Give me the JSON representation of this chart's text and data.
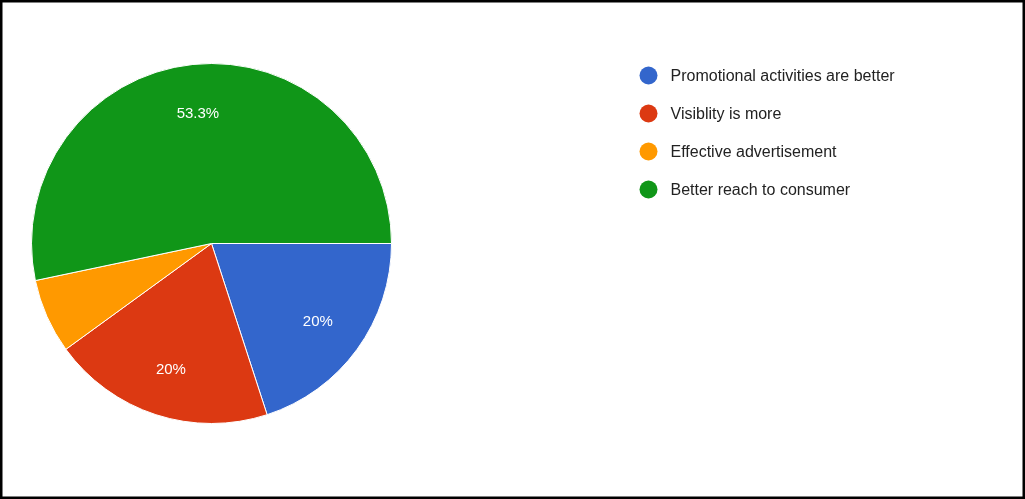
{
  "chart_data": {
    "type": "pie",
    "categories": [
      "Promotional activities are better",
      "Visiblity is more",
      "Effective advertisement",
      "Better reach to consumer"
    ],
    "values": [
      20,
      20,
      6.7,
      53.3
    ],
    "colors": [
      "#3366cc",
      "#dc3912",
      "#ff9900",
      "#109618"
    ],
    "value_labels": [
      "20%",
      "20%",
      null,
      "53.3%"
    ],
    "legend": "right"
  }
}
